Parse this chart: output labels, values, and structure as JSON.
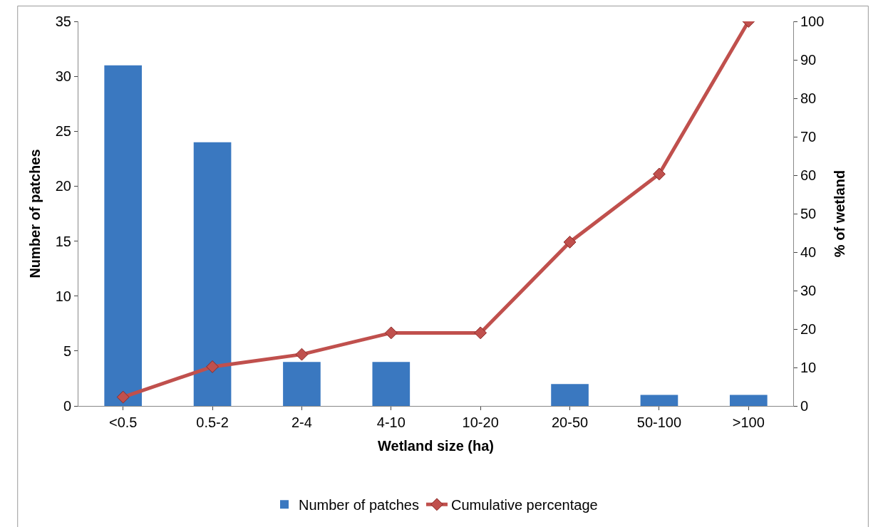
{
  "chart_data": {
    "type": "bar",
    "xlabel": "Wetland size (ha)",
    "ylabel": "Number of patches",
    "y2label": "% of wetland",
    "categories": [
      "<0.5",
      "0.5-2",
      "2-4",
      "4-10",
      "10-20",
      "20-50",
      "50-100",
      ">100"
    ],
    "series": [
      {
        "name": "Number of patches",
        "color": "#3a78c0",
        "values": [
          31,
          24,
          4,
          4,
          0,
          2,
          1,
          1
        ]
      },
      {
        "name": "Cumulative percentage",
        "type": "line",
        "axis": "y2",
        "color": "#c0504d",
        "marker": "diamond",
        "values": [
          2.3,
          10.2,
          13.4,
          19,
          19,
          42.6,
          60.3,
          100
        ]
      }
    ],
    "ylim": [
      0,
      35
    ],
    "yticks": [
      0,
      5,
      10,
      15,
      20,
      25,
      30,
      35
    ],
    "y2lim": [
      0,
      100
    ],
    "y2ticks": [
      0,
      10,
      20,
      30,
      40,
      50,
      60,
      70,
      80,
      90,
      100
    ],
    "legend": "bottom"
  }
}
